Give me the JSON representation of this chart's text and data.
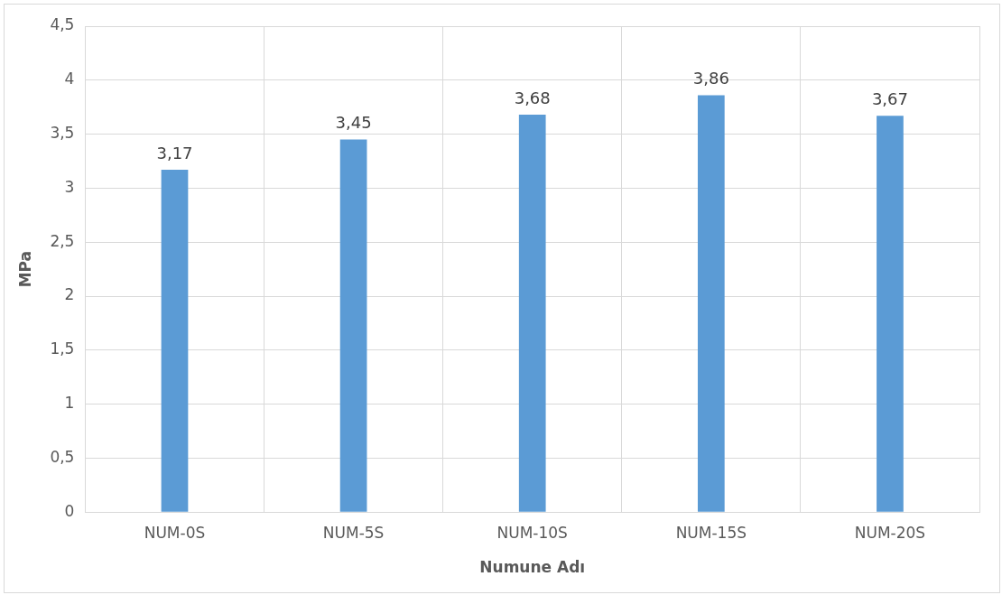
{
  "chart_data": {
    "type": "bar",
    "xlabel": "Numune Adı",
    "ylabel": "MPa",
    "categories": [
      "NUM-0S",
      "NUM-5S",
      "NUM-10S",
      "NUM-15S",
      "NUM-20S"
    ],
    "values": [
      3.17,
      3.45,
      3.68,
      3.86,
      3.67
    ],
    "color": "#5b9bd5",
    "value_labels": [
      "3,17",
      "3,45",
      "3,68",
      "3,86",
      "3,67"
    ],
    "ylim": [
      0,
      4.5
    ],
    "yticks": [
      0,
      {
        "value": 0.5,
        "label": "0,5"
      },
      1,
      {
        "value": 1.5,
        "label": "1,5"
      },
      2,
      {
        "value": 2.5,
        "label": "2,5"
      },
      3,
      {
        "value": 3.5,
        "label": "3,5"
      },
      4,
      {
        "value": 4.5,
        "label": "4,5"
      }
    ],
    "grid": true
  }
}
